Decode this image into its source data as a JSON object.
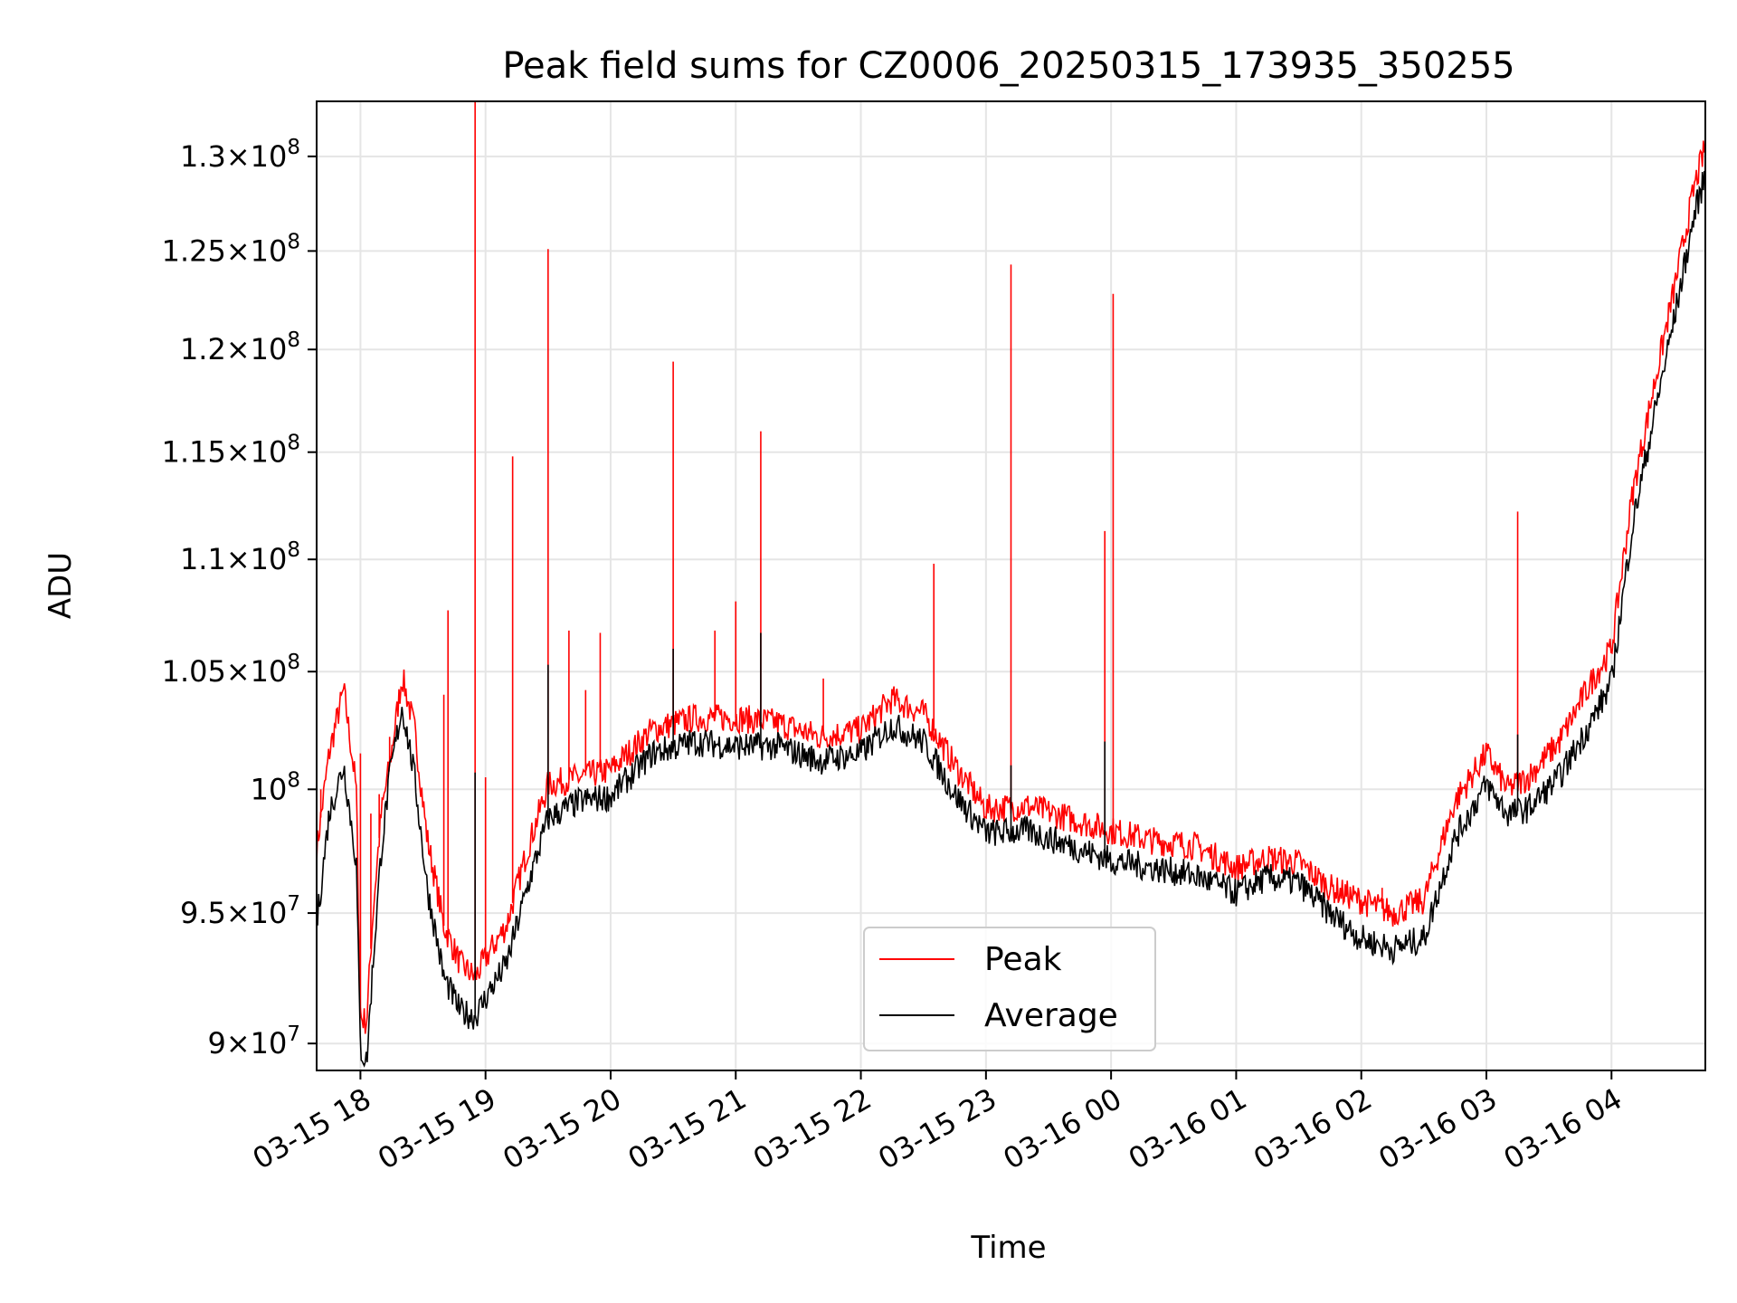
{
  "chart_data": {
    "type": "line",
    "title": "Peak field sums for CZ0006_20250315_173935_350255",
    "xlabel": "Time",
    "ylabel": "ADU",
    "xlim": [
      "03-15 17:39",
      "03-16 04:45"
    ],
    "ylim": [
      89000000,
      133000000
    ],
    "yscale": "log",
    "grid": true,
    "legend": "lower-center",
    "x_tick_labels": [
      "03-15 18",
      "03-15 19",
      "03-15 20",
      "03-15 21",
      "03-15 22",
      "03-15 23",
      "03-16 00",
      "03-16 01",
      "03-16 02",
      "03-16 03",
      "03-16 04"
    ],
    "y_ticks": [
      {
        "value": 90000000,
        "mantissa": "9",
        "exp": "7"
      },
      {
        "value": 95000000,
        "mantissa": "9.5",
        "exp": "7"
      },
      {
        "value": 100000000,
        "mantissa": "",
        "exp": "8"
      },
      {
        "value": 105000000,
        "mantissa": "1.05",
        "exp": "8"
      },
      {
        "value": 110000000,
        "mantissa": "1.1",
        "exp": "8"
      },
      {
        "value": 115000000,
        "mantissa": "1.15",
        "exp": "8"
      },
      {
        "value": 120000000,
        "mantissa": "1.2",
        "exp": "8"
      },
      {
        "value": 125000000,
        "mantissa": "1.25",
        "exp": "8"
      },
      {
        "value": 130000000,
        "mantissa": "1.3",
        "exp": "8"
      }
    ],
    "series": [
      {
        "name": "Peak",
        "color": "#ff0000",
        "x": [
          "03-15 17:39",
          "03-15 17:45",
          "03-15 17:52",
          "03-15 17:58",
          "03-15 18:00",
          "03-15 18:03",
          "03-15 18:06",
          "03-15 18:10",
          "03-15 18:14",
          "03-15 18:20",
          "03-15 18:26",
          "03-15 18:32",
          "03-15 18:40",
          "03-15 18:48",
          "03-15 18:55",
          "03-15 19:02",
          "03-15 19:10",
          "03-15 19:20",
          "03-15 19:30",
          "03-15 19:45",
          "03-15 20:00",
          "03-15 20:20",
          "03-15 20:40",
          "03-15 21:00",
          "03-15 21:20",
          "03-15 21:40",
          "03-15 22:00",
          "03-15 22:15",
          "03-15 22:30",
          "03-15 22:45",
          "03-15 23:00",
          "03-15 23:20",
          "03-15 23:40",
          "03-16 00:00",
          "03-16 00:20",
          "03-16 00:40",
          "03-16 01:00",
          "03-16 01:15",
          "03-16 01:30",
          "03-16 01:45",
          "03-16 02:00",
          "03-16 02:15",
          "03-16 02:30",
          "03-16 02:45",
          "03-16 03:00",
          "03-16 03:10",
          "03-16 03:20",
          "03-16 03:35",
          "03-16 03:50",
          "03-16 04:00",
          "03-16 04:10",
          "03-16 04:20",
          "03-16 04:30",
          "03-16 04:40",
          "03-16 04:45"
        ],
        "values": [
          97500000,
          101500000,
          104200000,
          100000000,
          91000000,
          90800000,
          95000000,
          99000000,
          101000000,
          104800000,
          102500000,
          98000000,
          94500000,
          93000000,
          92500000,
          93500000,
          94500000,
          97500000,
          100200000,
          100500000,
          100800000,
          102500000,
          103000000,
          103000000,
          102800000,
          102200000,
          102500000,
          103800000,
          103200000,
          101000000,
          99200000,
          99300000,
          98800000,
          98300000,
          97900000,
          97700000,
          96800000,
          97200000,
          97000000,
          96000000,
          95500000,
          95000000,
          95500000,
          99500000,
          101500000,
          100000000,
          100500000,
          102000000,
          104500000,
          106000000,
          113000000,
          118000000,
          123000000,
          128500000,
          130500000
        ]
      },
      {
        "name": "Average",
        "color": "#000000",
        "x": [
          "03-15 17:39",
          "03-15 17:45",
          "03-15 17:52",
          "03-15 17:58",
          "03-15 18:00",
          "03-15 18:03",
          "03-15 18:06",
          "03-15 18:10",
          "03-15 18:14",
          "03-15 18:20",
          "03-15 18:26",
          "03-15 18:32",
          "03-15 18:40",
          "03-15 18:48",
          "03-15 18:55",
          "03-15 19:02",
          "03-15 19:10",
          "03-15 19:20",
          "03-15 19:30",
          "03-15 19:45",
          "03-15 20:00",
          "03-15 20:20",
          "03-15 20:40",
          "03-15 21:00",
          "03-15 21:20",
          "03-15 21:40",
          "03-15 22:00",
          "03-15 22:15",
          "03-15 22:30",
          "03-15 22:45",
          "03-15 23:00",
          "03-15 23:20",
          "03-15 23:40",
          "03-16 00:00",
          "03-16 00:20",
          "03-16 00:40",
          "03-16 01:00",
          "03-16 01:15",
          "03-16 01:30",
          "03-16 01:45",
          "03-16 02:00",
          "03-16 02:15",
          "03-16 02:30",
          "03-16 02:45",
          "03-16 03:00",
          "03-16 03:10",
          "03-16 03:20",
          "03-16 03:35",
          "03-16 03:50",
          "03-16 04:00",
          "03-16 04:10",
          "03-16 04:20",
          "03-16 04:30",
          "03-16 04:40",
          "03-16 04:45"
        ],
        "values": [
          94500000,
          99000000,
          101000000,
          97000000,
          89800000,
          89300000,
          93000000,
          97500000,
          100500000,
          103500000,
          100500000,
          96000000,
          92500000,
          91200000,
          91000000,
          92000000,
          93000000,
          96000000,
          98800000,
          99500000,
          99700000,
          101500000,
          102000000,
          101800000,
          101800000,
          101200000,
          101500000,
          102700000,
          102000000,
          99800000,
          98200000,
          98300000,
          97700000,
          97100000,
          96800000,
          96500000,
          95800000,
          96400000,
          96200000,
          95000000,
          94000000,
          93600000,
          94000000,
          98000000,
          100200000,
          99000000,
          99200000,
          100500000,
          102800000,
          104500000,
          111500000,
          116500000,
          121500000,
          127000000,
          129000000
        ]
      }
    ],
    "spikes": [
      {
        "series": "Peak",
        "x": "03-15 17:41",
        "value": 100000000
      },
      {
        "series": "Peak",
        "x": "03-15 18:00",
        "value": 101500000
      },
      {
        "series": "Peak",
        "x": "03-15 18:05",
        "value": 99000000
      },
      {
        "series": "Peak",
        "x": "03-15 18:09",
        "value": 99800000
      },
      {
        "series": "Peak",
        "x": "03-15 18:14",
        "value": 102200000
      },
      {
        "series": "Peak",
        "x": "03-15 18:40",
        "value": 104000000
      },
      {
        "series": "Peak",
        "x": "03-15 18:42",
        "value": 107700000
      },
      {
        "series": "Peak",
        "x": "03-15 18:55",
        "value": 133000000
      },
      {
        "series": "Peak",
        "x": "03-15 19:00",
        "value": 100500000
      },
      {
        "series": "Peak",
        "x": "03-15 19:13",
        "value": 114800000
      },
      {
        "series": "Peak",
        "x": "03-15 19:30",
        "value": 125100000
      },
      {
        "series": "Peak",
        "x": "03-15 19:40",
        "value": 106800000
      },
      {
        "series": "Peak",
        "x": "03-15 19:48",
        "value": 104200000
      },
      {
        "series": "Peak",
        "x": "03-15 19:55",
        "value": 106700000
      },
      {
        "series": "Peak",
        "x": "03-15 20:30",
        "value": 119400000
      },
      {
        "series": "Peak",
        "x": "03-15 20:50",
        "value": 106800000
      },
      {
        "series": "Peak",
        "x": "03-15 21:00",
        "value": 108100000
      },
      {
        "series": "Peak",
        "x": "03-15 21:12",
        "value": 116000000
      },
      {
        "series": "Peak",
        "x": "03-15 21:42",
        "value": 104700000
      },
      {
        "series": "Peak",
        "x": "03-15 22:35",
        "value": 109800000
      },
      {
        "series": "Peak",
        "x": "03-15 23:12",
        "value": 124300000
      },
      {
        "series": "Peak",
        "x": "03-15 23:57",
        "value": 111300000
      },
      {
        "series": "Peak",
        "x": "03-16 00:01",
        "value": 122800000
      },
      {
        "series": "Peak",
        "x": "03-16 02:10",
        "value": 96000000
      },
      {
        "series": "Peak",
        "x": "03-16 03:15",
        "value": 112200000
      },
      {
        "series": "Average",
        "x": "03-15 18:55",
        "value": 100700000
      },
      {
        "series": "Average",
        "x": "03-15 19:30",
        "value": 105300000
      },
      {
        "series": "Average",
        "x": "03-15 20:30",
        "value": 106000000
      },
      {
        "series": "Average",
        "x": "03-15 21:12",
        "value": 106700000
      },
      {
        "series": "Average",
        "x": "03-15 23:12",
        "value": 101000000
      },
      {
        "series": "Average",
        "x": "03-15 23:57",
        "value": 102000000
      },
      {
        "series": "Average",
        "x": "03-16 03:15",
        "value": 102300000
      }
    ]
  }
}
